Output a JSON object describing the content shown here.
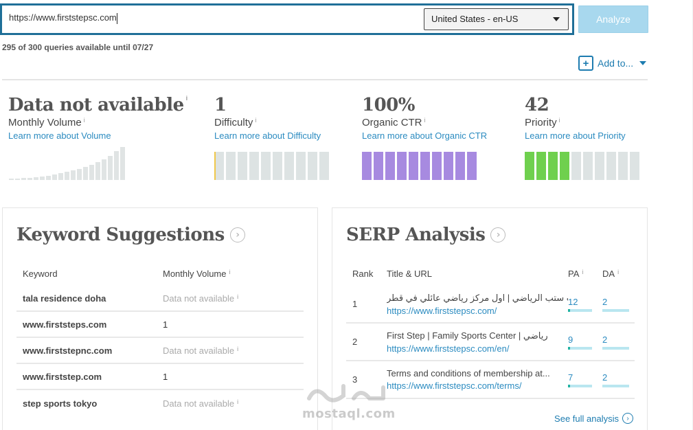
{
  "search": {
    "url_value": "https://www.firststepsc.com",
    "locale_selected": "United States - en-US",
    "analyze_label": "Analyze"
  },
  "queries_text": "295 of 300 queries available until 07/27",
  "add_to_label": "Add to...",
  "metrics": {
    "volume": {
      "value": "Data not available",
      "label": "Monthly Volume",
      "learn": "Learn more about Volume",
      "info": "i"
    },
    "difficulty": {
      "value": "1",
      "label": "Difficulty",
      "learn": "Learn more about Difficulty",
      "info": "i",
      "level": 1
    },
    "ctr": {
      "value": "100%",
      "label": "Organic CTR",
      "learn": "Learn more about Organic CTR",
      "info": "i",
      "level": 100
    },
    "priority": {
      "value": "42",
      "label": "Priority",
      "learn": "Learn more about Priority",
      "info": "i",
      "level": 42
    }
  },
  "colors": {
    "accent": "#1d7cb0",
    "ctr_fill": "#a78ae0",
    "priority_fill": "#6fd04e",
    "difficulty_fill": "#f0c84a",
    "empty_segment": "#dde3e3"
  },
  "keyword_suggestions": {
    "title": "Keyword Suggestions",
    "col_keyword": "Keyword",
    "col_volume": "Monthly Volume",
    "info": "i",
    "rows": [
      {
        "keyword": "tala residence doha",
        "volume": "Data not available",
        "na": true
      },
      {
        "keyword": "www.firststeps.com",
        "volume": "1",
        "na": false
      },
      {
        "keyword": "www.firststepnc.com",
        "volume": "Data not available",
        "na": true
      },
      {
        "keyword": "www.firststep.com",
        "volume": "1",
        "na": false
      },
      {
        "keyword": "step sports tokyo",
        "volume": "Data not available",
        "na": true
      }
    ]
  },
  "serp": {
    "title": "SERP Analysis",
    "col_rank": "Rank",
    "col_title": "Title & URL",
    "col_pa": "PA",
    "col_da": "DA",
    "info": "i",
    "rows": [
      {
        "rank": "1",
        "title": "فيرست ستب الرياضي | اول مركز رياضي عائلي في قطر",
        "url": "https://www.firststepsc.com/",
        "pa": "12",
        "da": "2"
      },
      {
        "rank": "2",
        "title": "First Step | Family Sports Center | رياضي",
        "url": "https://www.firststepsc.com/en/",
        "pa": "9",
        "da": "2"
      },
      {
        "rank": "3",
        "title": "Terms and conditions of membership at...",
        "url": "https://www.firststepsc.com/terms/",
        "pa": "7",
        "da": "2"
      }
    ],
    "see_full": "See full analysis"
  },
  "watermark": "mostaql.com"
}
